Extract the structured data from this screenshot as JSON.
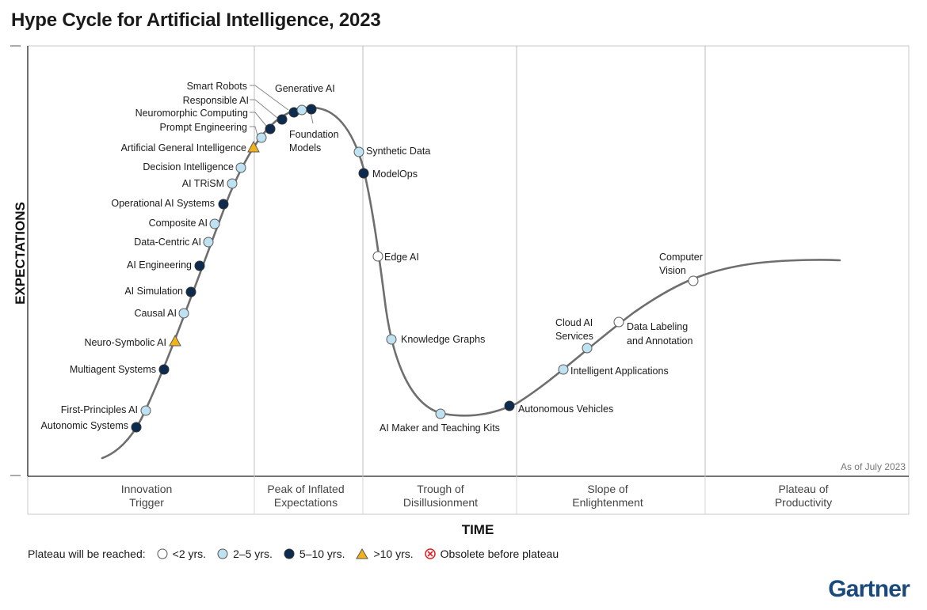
{
  "title": "Hype Cycle for Artificial Intelligence, 2023",
  "chart_data": {
    "type": "hype-cycle",
    "title": "Hype Cycle for Artificial Intelligence, 2023",
    "xlabel": "TIME",
    "ylabel": "EXPECTATIONS",
    "note": "As of July 2023",
    "colors": {
      "lt2": "#ffffff",
      "2to5": "#bfe2f3",
      "5to10": "#0c2b4e",
      "gt10": "#f2b319",
      "curve": "#6e6e6e",
      "grid": "#bdbdbd"
    },
    "phases": [
      "Innovation Trigger",
      "Peak of Inflated Expectations",
      "Trough of Disillusionment",
      "Slope of Enlightenment",
      "Plateau of Productivity"
    ],
    "technologies": [
      {
        "name": "Autonomic Systems",
        "years": "5to10"
      },
      {
        "name": "First-Principles AI",
        "years": "2to5"
      },
      {
        "name": "Multiagent Systems",
        "years": "5to10"
      },
      {
        "name": "Neuro-Symbolic AI",
        "years": "gt10"
      },
      {
        "name": "Causal AI",
        "years": "2to5"
      },
      {
        "name": "AI Simulation",
        "years": "5to10"
      },
      {
        "name": "AI Engineering",
        "years": "5to10"
      },
      {
        "name": "Data-Centric AI",
        "years": "2to5"
      },
      {
        "name": "Composite AI",
        "years": "2to5"
      },
      {
        "name": "Operational AI Systems",
        "years": "5to10"
      },
      {
        "name": "AI TRiSM",
        "years": "2to5"
      },
      {
        "name": "Decision Intelligence",
        "years": "2to5"
      },
      {
        "name": "Artificial General Intelligence",
        "years": "gt10"
      },
      {
        "name": "Prompt Engineering",
        "years": "2to5"
      },
      {
        "name": "Neuromorphic Computing",
        "years": "5to10"
      },
      {
        "name": "Responsible AI",
        "years": "5to10"
      },
      {
        "name": "Smart Robots",
        "years": "5to10"
      },
      {
        "name": "Generative AI",
        "years": "2to5"
      },
      {
        "name": "Foundation Models",
        "years": "5to10"
      },
      {
        "name": "Synthetic Data",
        "years": "2to5"
      },
      {
        "name": "ModelOps",
        "years": "5to10"
      },
      {
        "name": "Edge AI",
        "years": "lt2"
      },
      {
        "name": "Knowledge Graphs",
        "years": "2to5"
      },
      {
        "name": "AI Maker and Teaching Kits",
        "years": "2to5"
      },
      {
        "name": "Autonomous Vehicles",
        "years": "5to10"
      },
      {
        "name": "Intelligent Applications",
        "years": "2to5"
      },
      {
        "name": "Cloud AI Services",
        "years": "2to5"
      },
      {
        "name": "Data Labeling and Annotation",
        "years": "lt2"
      },
      {
        "name": "Computer Vision",
        "years": "lt2"
      }
    ]
  },
  "legend": {
    "title": "Plateau will be reached:",
    "items": [
      {
        "label": "<2 yrs.",
        "key": "lt2"
      },
      {
        "label": "2–5 yrs.",
        "key": "2to5"
      },
      {
        "label": "5–10 yrs.",
        "key": "5to10"
      },
      {
        "label": ">10 yrs.",
        "key": "gt10"
      },
      {
        "label": "Obsolete before plateau",
        "key": "obsolete"
      }
    ]
  },
  "brand": "Gartner"
}
